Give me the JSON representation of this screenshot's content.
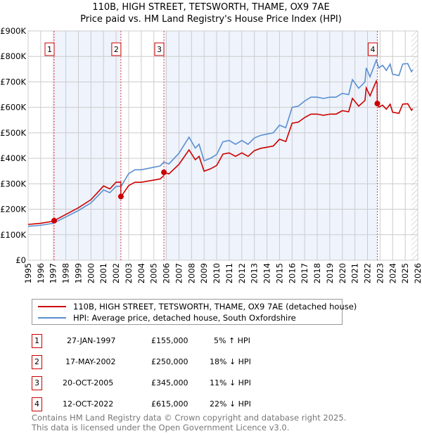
{
  "title": "110B, HIGH STREET, TETSWORTH, THAME, OX9 7AE",
  "subtitle": "Price paid vs. HM Land Registry's House Price Index (HPI)",
  "chart_data": {
    "type": "line",
    "title": "110B, HIGH STREET, TETSWORTH, THAME, OX9 7AE",
    "subtitle": "Price paid vs. HM Land Registry's House Price Index (HPI)",
    "xlim": [
      1995,
      2026
    ],
    "ylim": [
      0,
      900000
    ],
    "x_ticks": [
      "1995",
      "1996",
      "1997",
      "1998",
      "1999",
      "2000",
      "2001",
      "2002",
      "2003",
      "2004",
      "2005",
      "2006",
      "2007",
      "2008",
      "2009",
      "2010",
      "2011",
      "2012",
      "2013",
      "2014",
      "2015",
      "2016",
      "2017",
      "2018",
      "2019",
      "2020",
      "2021",
      "2022",
      "2023",
      "2024",
      "2025",
      "2026"
    ],
    "y_ticks": [
      {
        "v": 0,
        "label": "£0"
      },
      {
        "v": 100000,
        "label": "£100K"
      },
      {
        "v": 200000,
        "label": "£200K"
      },
      {
        "v": 300000,
        "label": "£300K"
      },
      {
        "v": 400000,
        "label": "£400K"
      },
      {
        "v": 500000,
        "label": "£500K"
      },
      {
        "v": 600000,
        "label": "£600K"
      },
      {
        "v": 700000,
        "label": "£700K"
      },
      {
        "v": 800000,
        "label": "£800K"
      },
      {
        "v": 900000,
        "label": "£900K"
      }
    ],
    "grid": true,
    "colors": {
      "price": "#cc0000",
      "hpi": "#5b8fd0",
      "shade": "#eef3fc"
    },
    "hpi_series": {
      "name": "HPI: Average price, detached house, South Oxfordshire",
      "x": [
        1995,
        1996,
        1997,
        1998,
        1999,
        2000,
        2000.5,
        2001,
        2001.5,
        2002,
        2002.4,
        2003,
        2003.5,
        2004,
        2005,
        2005.5,
        2005.8,
        2006.2,
        2007,
        2007.8,
        2008.3,
        2008.6,
        2009,
        2009.5,
        2010,
        2010.5,
        2011,
        2011.5,
        2012,
        2012.5,
        2013,
        2013.5,
        2014,
        2014.5,
        2015,
        2015.5,
        2016,
        2016.5,
        2017,
        2017.5,
        2018,
        2018.5,
        2019,
        2019.5,
        2020,
        2020.5,
        2020.8,
        2021.3,
        2021.8,
        2021.9,
        2022.2,
        2022.7,
        2022.9,
        2023.2,
        2023.5,
        2023.8,
        2024,
        2024.5,
        2024.8,
        2025.2,
        2025.5,
        2025.6
      ],
      "y": [
        133000,
        137000,
        145000,
        170000,
        195000,
        225000,
        250000,
        276000,
        265000,
        290000,
        290000,
        340000,
        355000,
        355000,
        365000,
        370000,
        385000,
        378000,
        420000,
        483000,
        440000,
        455000,
        390000,
        400000,
        415000,
        465000,
        470000,
        455000,
        470000,
        455000,
        480000,
        490000,
        495000,
        500000,
        530000,
        520000,
        600000,
        605000,
        625000,
        640000,
        640000,
        635000,
        640000,
        640000,
        655000,
        650000,
        709000,
        675000,
        700000,
        755000,
        720000,
        785000,
        755000,
        765000,
        745000,
        770000,
        730000,
        725000,
        770000,
        772000,
        740000,
        748000
      ]
    },
    "price_series": {
      "name": "110B, HIGH STREET, TETSWORTH, THAME, OX9 7AE (detached house)"
    },
    "sales": [
      {
        "n": "1",
        "x": 1997.07,
        "date": "27-JAN-1997",
        "price": 155000,
        "price_label": "£155,000",
        "hpi": "5% ↑ HPI"
      },
      {
        "n": "2",
        "x": 2002.38,
        "date": "17-MAY-2002",
        "price": 250000,
        "price_label": "£250,000",
        "hpi": "18% ↓ HPI"
      },
      {
        "n": "3",
        "x": 2005.8,
        "date": "20-OCT-2005",
        "price": 345000,
        "price_label": "£345,000",
        "hpi": "11% ↓ HPI"
      },
      {
        "n": "4",
        "x": 2022.78,
        "date": "12-OCT-2022",
        "price": 615000,
        "price_label": "£615,000",
        "hpi": "22% ↓ HPI"
      }
    ],
    "forecast_from": 2025.5
  },
  "legend": {
    "price": "110B, HIGH STREET, TETSWORTH, THAME, OX9 7AE (detached house)",
    "hpi": "HPI: Average price, detached house, South Oxfordshire"
  },
  "footer": {
    "line1": "Contains HM Land Registry data © Crown copyright and database right 2025.",
    "line2": "This data is licensed under the Open Government Licence v3.0."
  }
}
